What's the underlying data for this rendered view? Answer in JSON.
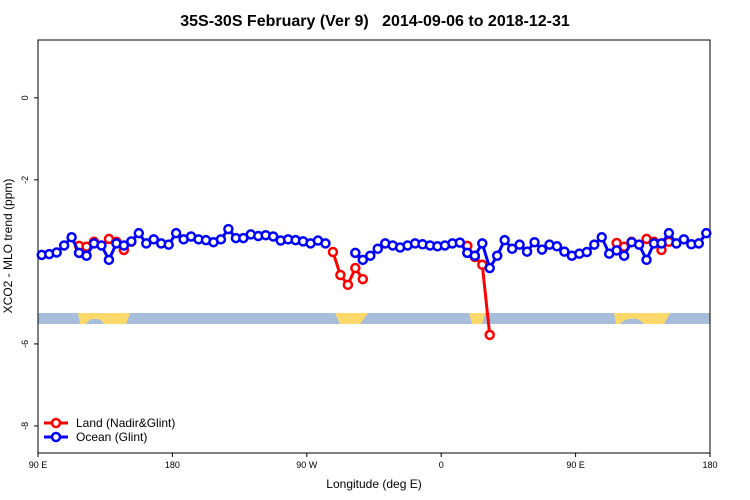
{
  "chart_data": {
    "type": "line",
    "title": "35S-30S February (Ver 9)   2014-09-06 to 2018-12-31",
    "x_label": "Longitude (deg E)",
    "y_label": "XCO2 - MLO trend (ppm)",
    "xlim": [
      90,
      540
    ],
    "xticks": [
      {
        "value": 90,
        "label": "90 E"
      },
      {
        "value": 180,
        "label": "180"
      },
      {
        "value": 270,
        "label": "90 W"
      },
      {
        "value": 360,
        "label": "0"
      },
      {
        "value": 450,
        "label": "90 E"
      },
      {
        "value": 540,
        "label": "180"
      }
    ],
    "ylim": [
      -8.66,
      1.41
    ],
    "yticks": [
      0,
      -2,
      -6,
      -8
    ],
    "legend": "bottom-left",
    "x": [
      92.5,
      97.5,
      102.5,
      107.5,
      112.5,
      117.5,
      122.5,
      127.5,
      132.5,
      137.5,
      142.5,
      147.5,
      152.5,
      157.5,
      162.5,
      167.5,
      172.5,
      177.5,
      182.5,
      187.5,
      192.5,
      197.5,
      202.5,
      207.5,
      212.5,
      217.5,
      222.5,
      227.5,
      232.5,
      237.5,
      242.5,
      247.5,
      252.5,
      257.5,
      262.5,
      267.5,
      272.5,
      277.5,
      282.5,
      287.5,
      292.5,
      297.5,
      302.5,
      307.5,
      312.5,
      317.5,
      322.5,
      327.5,
      332.5,
      337.5,
      342.5,
      347.5,
      352.5,
      357.5,
      362.5,
      367.5,
      372.5,
      377.5,
      382.5,
      387.5,
      392.5,
      397.5,
      402.5,
      407.5,
      412.5,
      417.5,
      422.5,
      427.5,
      432.5,
      437.5,
      442.5,
      447.5,
      452.5,
      457.5,
      462.5,
      467.5,
      472.5,
      477.5,
      482.5,
      487.5,
      492.5,
      497.5,
      502.5,
      507.5,
      512.5,
      517.5,
      522.5,
      527.5,
      532.5,
      537.5
    ],
    "series": [
      {
        "name": "Land (Nadir&Glint)",
        "color": "#ff0000",
        "values": [
          null,
          null,
          null,
          null,
          null,
          -3.61,
          -3.63,
          -3.51,
          null,
          -3.44,
          -3.51,
          -3.71,
          -3.51,
          null,
          null,
          null,
          null,
          null,
          null,
          null,
          null,
          null,
          null,
          null,
          null,
          null,
          null,
          null,
          null,
          null,
          null,
          null,
          null,
          null,
          null,
          null,
          null,
          null,
          null,
          -3.76,
          -4.32,
          -4.56,
          -4.15,
          -4.42,
          null,
          null,
          null,
          null,
          null,
          null,
          null,
          null,
          null,
          null,
          null,
          null,
          null,
          -3.61,
          -3.88,
          -4.07,
          -5.78,
          null,
          null,
          null,
          null,
          null,
          null,
          null,
          null,
          null,
          null,
          null,
          null,
          null,
          null,
          null,
          null,
          -3.54,
          -3.63,
          -3.51,
          null,
          -3.44,
          -3.51,
          -3.71,
          -3.51,
          null,
          null,
          null,
          null,
          null
        ]
      },
      {
        "name": "Ocean (Glint)",
        "color": "#0000ff",
        "values": [
          -3.83,
          -3.81,
          -3.77,
          -3.6,
          -3.4,
          -3.78,
          -3.85,
          -3.55,
          -3.6,
          -3.95,
          -3.55,
          -3.6,
          -3.5,
          -3.3,
          -3.55,
          -3.45,
          -3.55,
          -3.58,
          -3.3,
          -3.45,
          -3.38,
          -3.45,
          -3.47,
          -3.52,
          -3.45,
          -3.2,
          -3.42,
          -3.42,
          -3.33,
          -3.37,
          -3.35,
          -3.38,
          -3.48,
          -3.45,
          -3.47,
          -3.5,
          -3.55,
          -3.48,
          -3.55,
          null,
          null,
          null,
          -3.78,
          -3.95,
          -3.85,
          -3.68,
          -3.55,
          -3.6,
          -3.65,
          -3.6,
          -3.55,
          -3.57,
          -3.6,
          -3.62,
          -3.6,
          -3.55,
          -3.53,
          -3.78,
          -3.85,
          -3.55,
          -4.15,
          -3.85,
          -3.47,
          -3.68,
          -3.58,
          -3.75,
          -3.52,
          -3.7,
          -3.58,
          -3.62,
          -3.75,
          -3.85,
          -3.8,
          -3.76,
          -3.58,
          -3.4,
          -3.8,
          -3.72,
          -3.85,
          -3.52,
          -3.58,
          -3.95,
          -3.55,
          -3.55,
          -3.3,
          -3.55,
          -3.45,
          -3.57,
          -3.55,
          -3.3
        ]
      }
    ]
  }
}
